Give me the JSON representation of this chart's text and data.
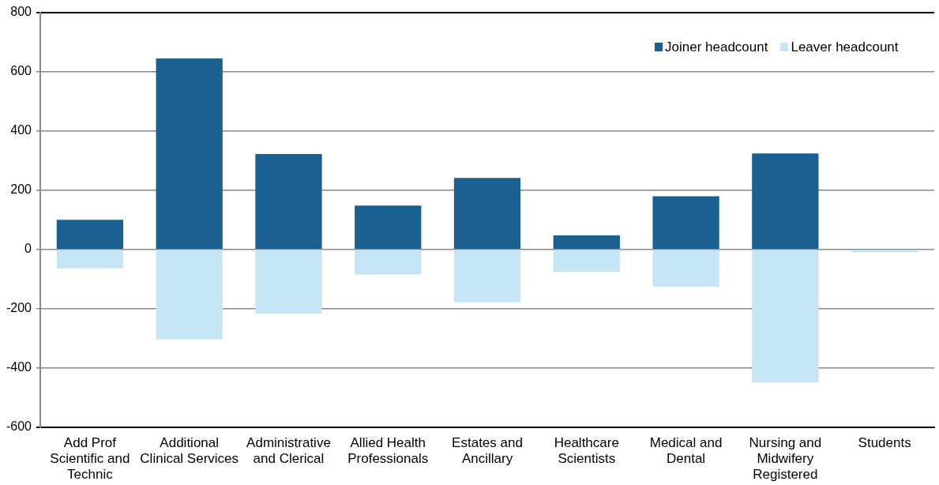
{
  "chart_data": {
    "type": "bar",
    "stacked": true,
    "categories": [
      "Add Prof Scientific and Technic",
      "Additional Clinical Services",
      "Administrative and Clerical",
      "Allied Health Professionals",
      "Estates and Ancillary",
      "Healthcare Scientists",
      "Medical and Dental",
      "Nursing and Midwifery Registered",
      "Students"
    ],
    "series": [
      {
        "name": "Joiner headcount",
        "color": "#1a6192",
        "values": [
          100,
          644,
          322,
          148,
          241,
          47,
          179,
          324,
          null
        ]
      },
      {
        "name": "Leaver headcount",
        "color": "#c6e6f5",
        "values": [
          -64,
          -303,
          -217,
          -85,
          -179,
          -76,
          -126,
          -449,
          -10
        ]
      }
    ],
    "ylim": [
      -600,
      800
    ],
    "yticks": [
      -600,
      -400,
      -200,
      0,
      200,
      400,
      600,
      800
    ],
    "grid": "y",
    "legend": "top right"
  }
}
